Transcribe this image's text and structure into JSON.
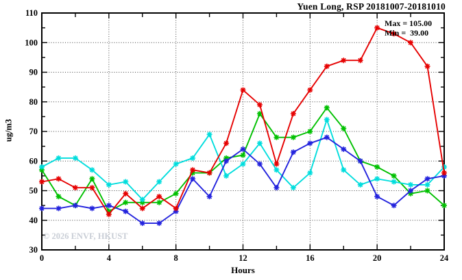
{
  "chart_data": {
    "type": "line",
    "title": "Yuen Long, RSP 20181007-20181010",
    "xlabel": "Hours",
    "ylabel": "ug/m3",
    "watermark": "© 2026 ENVF, HKUST",
    "annotation": {
      "max_label": "Max = 105.00",
      "min_label": "Min =  39.00",
      "max_value": 105.0,
      "min_value": 39.0
    },
    "x_range": [
      0,
      24
    ],
    "y_range": [
      30,
      110
    ],
    "x_major_tick_values": [
      0,
      4,
      8,
      12,
      16,
      20,
      24
    ],
    "x_minor_tick_step": 2,
    "y_major_tick_values": [
      30,
      40,
      50,
      60,
      70,
      80,
      90,
      100,
      110
    ],
    "y_minor_tick_step": 5,
    "grid_x_values": [
      4,
      8,
      12,
      16,
      20
    ],
    "grid_y_values": [
      40,
      50,
      60,
      70,
      80,
      90,
      100
    ],
    "grid_style": "dotted",
    "legend": "none",
    "x": [
      0,
      1,
      2,
      3,
      4,
      5,
      6,
      7,
      8,
      9,
      10,
      11,
      12,
      13,
      14,
      15,
      16,
      17,
      18,
      19,
      20,
      21,
      22,
      23,
      24
    ],
    "series": [
      {
        "name": "rsp-green",
        "color": "#00c000",
        "values": [
          57,
          48,
          45,
          54,
          43,
          46,
          46,
          46,
          49,
          56,
          56,
          61,
          62,
          76,
          68,
          68,
          70,
          78,
          71,
          60,
          58,
          55,
          49,
          50,
          45
        ]
      },
      {
        "name": "rsp-cyan",
        "color": "#00dddd",
        "values": [
          58,
          61,
          61,
          57,
          52,
          53,
          47,
          53,
          59,
          61,
          69,
          55,
          59,
          66,
          57,
          51,
          56,
          74,
          57,
          52,
          54,
          53,
          52,
          52,
          58
        ]
      },
      {
        "name": "rsp-blue",
        "color": "#2222dd",
        "values": [
          44,
          44,
          45,
          44,
          45,
          43,
          39,
          39,
          43,
          54,
          48,
          60,
          64,
          59,
          51,
          63,
          66,
          68,
          64,
          60,
          48,
          45,
          50,
          54,
          55
        ]
      },
      {
        "name": "rsp-red",
        "color": "#e60000",
        "values": [
          53,
          54,
          51,
          51,
          42,
          49,
          44,
          48,
          44,
          57,
          56,
          66,
          84,
          79,
          59,
          76,
          84,
          92,
          94,
          94,
          105,
          103,
          100,
          92,
          56
        ]
      }
    ],
    "colors": {
      "axis": "#000000",
      "grid": "#444444",
      "background": "#ffffff"
    }
  }
}
